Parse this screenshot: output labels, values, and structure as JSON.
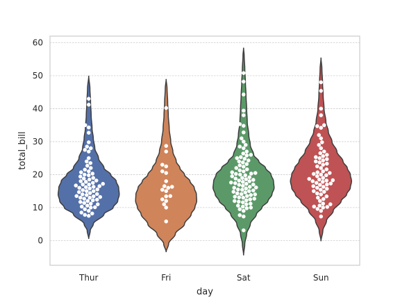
{
  "chart_data": {
    "type": "violin",
    "xlabel": "day",
    "ylabel": "total_bill",
    "ylim": [
      -7.5,
      62
    ],
    "yticks": [
      0,
      10,
      20,
      30,
      40,
      50,
      60
    ],
    "categories": [
      "Thur",
      "Fri",
      "Sat",
      "Sun"
    ],
    "colors": [
      "#5470a8",
      "#d0845a",
      "#5b9a68",
      "#bf5254"
    ],
    "grid": true,
    "violins": [
      {
        "name": "Thur",
        "max": 50,
        "min": 0.5,
        "profile": [
          [
            0.5,
            0.0
          ],
          [
            3,
            0.05
          ],
          [
            5,
            0.15
          ],
          [
            8,
            0.5
          ],
          [
            10,
            0.8
          ],
          [
            12,
            0.95
          ],
          [
            14,
            1.0
          ],
          [
            16,
            0.98
          ],
          [
            18,
            0.9
          ],
          [
            20,
            0.72
          ],
          [
            22,
            0.5
          ],
          [
            25,
            0.32
          ],
          [
            28,
            0.2
          ],
          [
            31,
            0.15
          ],
          [
            34,
            0.11
          ],
          [
            38,
            0.08
          ],
          [
            42,
            0.06
          ],
          [
            46,
            0.04
          ],
          [
            50,
            0.0
          ]
        ],
        "points": [
          7.5,
          7.8,
          8.2,
          8.5,
          9,
          9.5,
          10,
          10.1,
          10.3,
          10.6,
          11,
          11.2,
          11.4,
          11.7,
          12,
          12.2,
          12.4,
          12.7,
          13,
          13,
          13.2,
          13.4,
          13.5,
          13.8,
          14,
          14.1,
          14.4,
          14.7,
          15,
          15,
          15.3,
          15.5,
          15.8,
          16,
          16.2,
          16.3,
          16.5,
          16.7,
          17,
          17,
          17.2,
          17.5,
          17.8,
          18,
          18.2,
          18.5,
          18.8,
          19,
          19.4,
          19.8,
          20,
          20.3,
          20.7,
          21,
          21.5,
          22,
          22.7,
          23.5,
          24,
          25,
          27,
          27.5,
          28,
          28.5,
          29.8,
          32.7,
          34.3,
          35,
          41.2,
          43
        ]
      },
      {
        "name": "Fri",
        "max": 49,
        "min": -3.5,
        "profile": [
          [
            -3.5,
            0.0
          ],
          [
            -1,
            0.08
          ],
          [
            2,
            0.3
          ],
          [
            5,
            0.6
          ],
          [
            8,
            0.82
          ],
          [
            10,
            0.94
          ],
          [
            12,
            1.0
          ],
          [
            14,
            0.99
          ],
          [
            16,
            0.92
          ],
          [
            18,
            0.78
          ],
          [
            20,
            0.6
          ],
          [
            22,
            0.45
          ],
          [
            24,
            0.33
          ],
          [
            27,
            0.22
          ],
          [
            30,
            0.15
          ],
          [
            34,
            0.1
          ],
          [
            38,
            0.07
          ],
          [
            42,
            0.05
          ],
          [
            46,
            0.03
          ],
          [
            49,
            0.0
          ]
        ],
        "points": [
          5.8,
          10,
          11,
          12,
          12.5,
          13.4,
          13.5,
          15,
          15.4,
          16,
          16.3,
          16.5,
          18,
          20.5,
          21,
          22.5,
          23,
          27,
          28.7,
          40.2
        ]
      },
      {
        "name": "Sat",
        "max": 58.5,
        "min": -4.5,
        "profile": [
          [
            -4.5,
            0.0
          ],
          [
            -1,
            0.04
          ],
          [
            2,
            0.1
          ],
          [
            5,
            0.22
          ],
          [
            8,
            0.42
          ],
          [
            10,
            0.6
          ],
          [
            12,
            0.8
          ],
          [
            14,
            0.93
          ],
          [
            16,
            1.0
          ],
          [
            18,
            0.98
          ],
          [
            20,
            0.9
          ],
          [
            22,
            0.72
          ],
          [
            24,
            0.5
          ],
          [
            26,
            0.33
          ],
          [
            29,
            0.22
          ],
          [
            32,
            0.17
          ],
          [
            36,
            0.12
          ],
          [
            40,
            0.1
          ],
          [
            44,
            0.08
          ],
          [
            48,
            0.06
          ],
          [
            52,
            0.04
          ],
          [
            56,
            0.02
          ],
          [
            58.5,
            0.0
          ]
        ],
        "points": [
          3.1,
          7.3,
          7.7,
          9,
          9.5,
          9.8,
          10,
          10.3,
          10.6,
          11,
          11.2,
          11.6,
          11.8,
          12,
          12.2,
          12.5,
          12.7,
          13,
          13.1,
          13.3,
          13.5,
          13.8,
          14,
          14.1,
          14.3,
          14.6,
          14.8,
          15,
          15.2,
          15.4,
          15.5,
          15.8,
          16,
          16.1,
          16.3,
          16.6,
          16.9,
          17,
          17.2,
          17.4,
          17.6,
          17.8,
          18,
          18.2,
          18.4,
          18.6,
          18.8,
          19,
          19.2,
          19.5,
          19.8,
          20,
          20.2,
          20.3,
          20.5,
          20.7,
          21,
          21.3,
          21.6,
          22,
          22.4,
          22.8,
          23.2,
          23.7,
          24,
          24.3,
          24.8,
          25,
          25.3,
          25.8,
          26,
          26.4,
          27,
          28,
          28.5,
          29,
          30,
          31,
          32.8,
          34.8,
          35.3,
          38,
          39.4,
          44.3,
          48.2,
          48.3,
          50.8
        ]
      },
      {
        "name": "Sun",
        "max": 55.5,
        "min": -0.2,
        "profile": [
          [
            -0.2,
            0.0
          ],
          [
            3,
            0.06
          ],
          [
            6,
            0.18
          ],
          [
            9,
            0.4
          ],
          [
            12,
            0.66
          ],
          [
            14,
            0.84
          ],
          [
            16,
            0.96
          ],
          [
            18,
            1.0
          ],
          [
            20,
            0.96
          ],
          [
            22,
            0.86
          ],
          [
            24,
            0.72
          ],
          [
            27,
            0.52
          ],
          [
            30,
            0.36
          ],
          [
            33,
            0.24
          ],
          [
            36,
            0.16
          ],
          [
            40,
            0.1
          ],
          [
            44,
            0.07
          ],
          [
            48,
            0.05
          ],
          [
            52,
            0.03
          ],
          [
            55.5,
            0.0
          ]
        ],
        "points": [
          7.3,
          9,
          9.6,
          10,
          10.2,
          10.3,
          10.6,
          11,
          11.2,
          12,
          12.6,
          13,
          13.4,
          14,
          14.3,
          14.8,
          15,
          15.4,
          15.7,
          16,
          16.3,
          16.5,
          16.9,
          17,
          17.3,
          17.5,
          17.8,
          18,
          18.2,
          18.3,
          18.5,
          18.7,
          19,
          19.5,
          19.8,
          20,
          20.2,
          20.5,
          20.7,
          21,
          21.6,
          22,
          22.5,
          23,
          23.3,
          23.7,
          24,
          24.3,
          24.7,
          25,
          25.3,
          25.6,
          26,
          26.5,
          27,
          28,
          29,
          29.8,
          31,
          32,
          34.2,
          34.7,
          35,
          38,
          40,
          45.4,
          48,
          48.5
        ]
      }
    ]
  }
}
